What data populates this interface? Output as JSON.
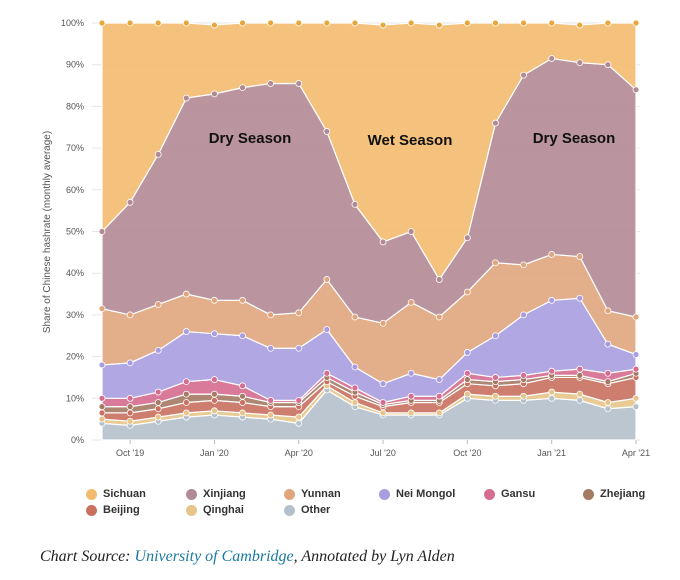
{
  "chart_data": {
    "type": "area",
    "stacked": true,
    "ylabel": "Share of Chinese hashrate (monthly average)",
    "y_ticks": [
      "0%",
      "10%",
      "20%",
      "30%",
      "40%",
      "50%",
      "60%",
      "70%",
      "80%",
      "90%",
      "100%"
    ],
    "ylim": [
      0,
      100
    ],
    "x": [
      "Sep '19",
      "Oct '19",
      "Nov '19",
      "Dec '19",
      "Jan '20",
      "Feb '20",
      "Mar '20",
      "Apr '20",
      "May '20",
      "Jun '20",
      "Jul '20",
      "Aug '20",
      "Sep '20",
      "Oct '20",
      "Nov '20",
      "Dec '20",
      "Jan '21",
      "Feb '21",
      "Mar '21",
      "Apr '21"
    ],
    "x_ticks": [
      {
        "label": "Oct '19",
        "index": 1
      },
      {
        "label": "Jan '20",
        "index": 4
      },
      {
        "label": "Apr '20",
        "index": 7
      },
      {
        "label": "Jul '20",
        "index": 10
      },
      {
        "label": "Oct '20",
        "index": 13
      },
      {
        "label": "Jan '21",
        "index": 16
      },
      {
        "label": "Apr '21",
        "index": 19
      }
    ],
    "grid": true,
    "legend_position": "bottom",
    "series": [
      {
        "name": "Other",
        "color": "#b4c0cb",
        "values": [
          4,
          3.5,
          4.5,
          5.5,
          6,
          5.5,
          5,
          4,
          12,
          8,
          6,
          6,
          6,
          10,
          9.5,
          9.5,
          10,
          9.5,
          7.5,
          8
        ]
      },
      {
        "name": "Qinghai",
        "color": "#e6c48a",
        "values": [
          1,
          1,
          1,
          1,
          1,
          1,
          1,
          1.5,
          1,
          1,
          0.5,
          0.5,
          0.5,
          1,
          1,
          1,
          1.5,
          1.5,
          1.5,
          2
        ]
      },
      {
        "name": "Beijing",
        "color": "#c9705f",
        "values": [
          1.5,
          2,
          2,
          2.5,
          2.5,
          2.5,
          2,
          2.5,
          1,
          1.5,
          1.5,
          2.5,
          2.5,
          2.5,
          2.5,
          3,
          3.5,
          4,
          4.5,
          5
        ]
      },
      {
        "name": "Zhejiang",
        "color": "#a47a63",
        "values": [
          1.5,
          1.5,
          1.5,
          2,
          1.5,
          1.5,
          1,
          1,
          1,
          1,
          0.5,
          0.5,
          0.5,
          1,
          1,
          1,
          0.5,
          0.5,
          0.5,
          1
        ]
      },
      {
        "name": "Gansu",
        "color": "#d66c8f",
        "values": [
          2,
          2,
          2.5,
          3,
          3.5,
          2.5,
          0.5,
          0.5,
          1,
          1,
          0.5,
          1,
          1,
          1.5,
          1,
          1,
          1,
          1.5,
          2,
          1
        ]
      },
      {
        "name": "Nei Mongol",
        "color": "#a99de0",
        "values": [
          8,
          8.5,
          10,
          12,
          11,
          12,
          12.5,
          12.5,
          10.5,
          5,
          4.5,
          5.5,
          4,
          5,
          10,
          14.5,
          17,
          17,
          7,
          3.5
        ]
      },
      {
        "name": "Yunnan",
        "color": "#e0a57d",
        "values": [
          13.5,
          11.5,
          11,
          9,
          8,
          8.5,
          8,
          8.5,
          12,
          12,
          14.5,
          17,
          15,
          14.5,
          17.5,
          12,
          11,
          10,
          8,
          9
        ]
      },
      {
        "name": "Xinjiang",
        "color": "#b28a95",
        "values": [
          18.5,
          27,
          36,
          47,
          49.5,
          51,
          55.5,
          55,
          35.5,
          27,
          19.5,
          17,
          9,
          13,
          33.5,
          45.5,
          47,
          46.5,
          59,
          54.5
        ]
      },
      {
        "name": "Sichuan",
        "color": "#f3bb6e",
        "values": [
          50,
          43,
          31.5,
          18,
          16.5,
          15.5,
          14.5,
          14.5,
          26,
          43.5,
          52,
          50,
          61,
          51.5,
          24,
          12.5,
          8.5,
          9,
          10,
          16
        ]
      }
    ],
    "annotations": [
      "Dry Season",
      "Wet Season",
      "Dry Season"
    ]
  },
  "legend": {
    "items": [
      {
        "name": "Sichuan",
        "color": "#f3bb6e"
      },
      {
        "name": "Xinjiang",
        "color": "#b28a95"
      },
      {
        "name": "Yunnan",
        "color": "#e0a57d"
      },
      {
        "name": "Nei Mongol",
        "color": "#a99de0"
      },
      {
        "name": "Gansu",
        "color": "#d66c8f"
      },
      {
        "name": "Zhejiang",
        "color": "#a47a63"
      },
      {
        "name": "Beijing",
        "color": "#c9705f"
      },
      {
        "name": "Qinghai",
        "color": "#e6c48a"
      },
      {
        "name": "Other",
        "color": "#b4c0cb"
      }
    ]
  },
  "caption": {
    "prefix": "Chart Source: ",
    "link_text": "University of Cambridge",
    "suffix": ", Annotated by Lyn Alden"
  }
}
